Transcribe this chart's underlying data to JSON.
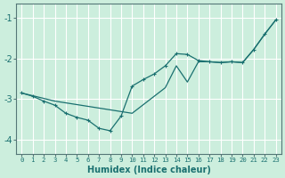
{
  "xlabel": "Humidex (Indice chaleur)",
  "bg_color": "#cceedd",
  "grid_color": "#aaddcc",
  "line_color": "#1a7070",
  "xlim": [
    -0.5,
    23.5
  ],
  "ylim": [
    -4.35,
    -0.65
  ],
  "xticks": [
    0,
    1,
    2,
    3,
    4,
    5,
    6,
    7,
    8,
    9,
    10,
    11,
    12,
    13,
    14,
    15,
    16,
    17,
    18,
    19,
    20,
    21,
    22,
    23
  ],
  "yticks": [
    -4,
    -3,
    -2,
    -1
  ],
  "line1_x": [
    0,
    1,
    2,
    3,
    4,
    5,
    6,
    7,
    8,
    9,
    10,
    11,
    12,
    13,
    14,
    15,
    16,
    17,
    18,
    19,
    20,
    21,
    22,
    23
  ],
  "line1_y": [
    -2.85,
    -2.93,
    -3.05,
    -3.15,
    -3.35,
    -3.45,
    -3.52,
    -3.72,
    -3.78,
    -3.42,
    -2.68,
    -2.52,
    -2.38,
    -2.18,
    -1.88,
    -1.9,
    -2.05,
    -2.08,
    -2.1,
    -2.08,
    -2.1,
    -1.78,
    -1.4,
    -1.05
  ],
  "line2_x": [
    0,
    3,
    10,
    13,
    14,
    15,
    16,
    17,
    18,
    19,
    20,
    21,
    22,
    23
  ],
  "line2_y": [
    -2.85,
    -3.05,
    -3.35,
    -2.72,
    -2.18,
    -2.58,
    -2.08,
    -2.08,
    -2.1,
    -2.08,
    -2.1,
    -1.78,
    -1.4,
    -1.05
  ]
}
